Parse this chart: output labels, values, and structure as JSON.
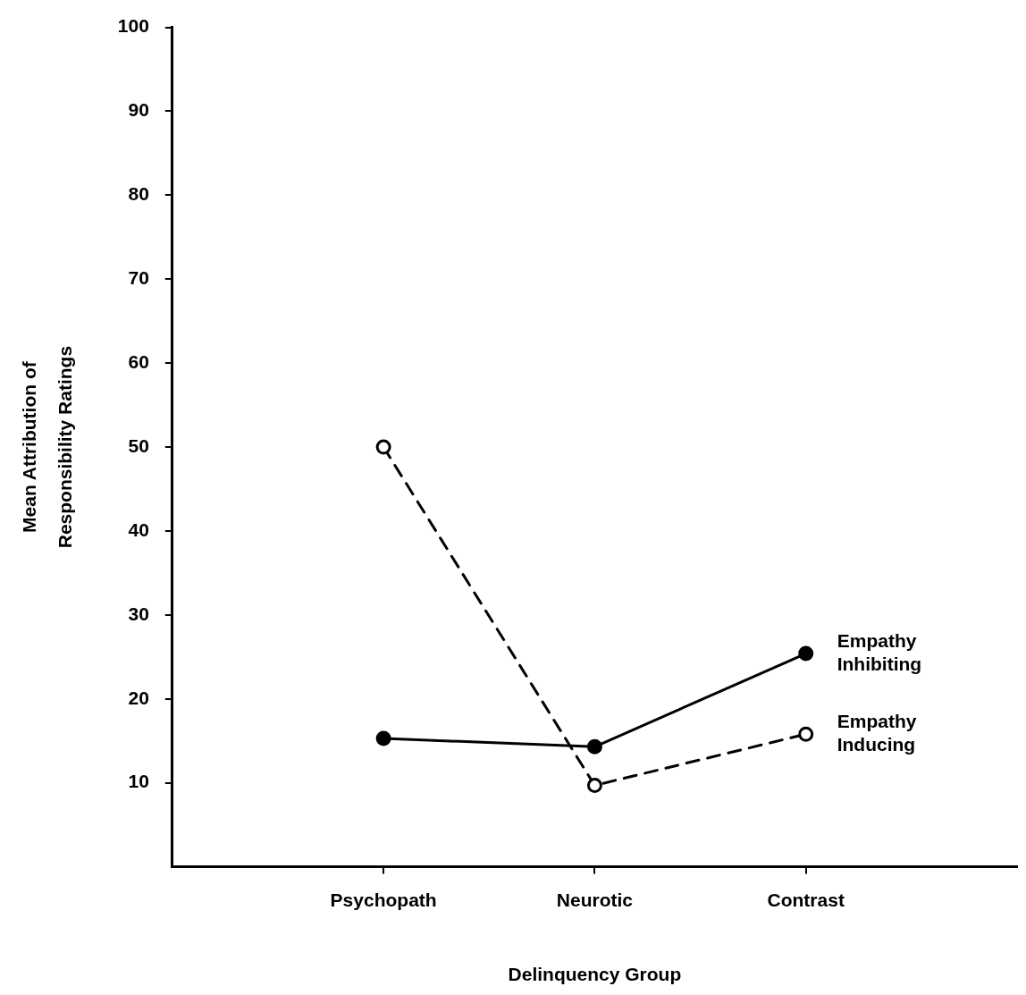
{
  "chart_data": {
    "type": "line",
    "xlabel": "Delinquency Group",
    "ylabel": "Mean Attribution of Responsibility Ratings",
    "categories": [
      "Psychopath",
      "Neurotic",
      "Contrast"
    ],
    "ylim": [
      0,
      100
    ],
    "yticks": [
      10,
      20,
      30,
      40,
      50,
      60,
      70,
      80,
      90,
      100
    ],
    "legend": false,
    "marker": "circle",
    "series": [
      {
        "name": "Empathy Inhibiting",
        "color": "#000000",
        "line_style": "solid",
        "values": [
          15.3,
          14.3,
          25.4
        ]
      },
      {
        "name": "Empathy Inducing",
        "color": "#000000",
        "line_style": "dashed",
        "values": [
          50,
          9.7,
          15.8
        ]
      }
    ]
  }
}
